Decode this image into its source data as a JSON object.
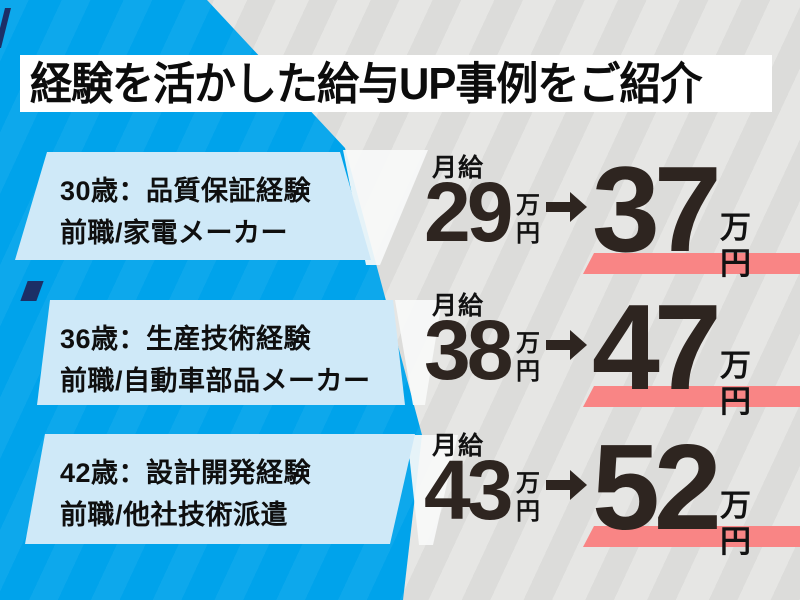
{
  "title": "経験を活かした給与UP事例をご紹介",
  "cases": [
    {
      "profile_line1": "30歳：品質保証経験",
      "profile_line2": "前職/家電メーカー",
      "salary_label": "月給",
      "salary_from": "29",
      "salary_to": "37",
      "unit_top": "万",
      "unit_bottom": "円"
    },
    {
      "profile_line1": "36歳：生産技術経験",
      "profile_line2": "前職/自動車部品メーカー",
      "salary_label": "月給",
      "salary_from": "38",
      "salary_to": "47",
      "unit_top": "万",
      "unit_bottom": "円"
    },
    {
      "profile_line1": "42歳：設計開発経験",
      "profile_line2": "前職/他社技術派遣",
      "salary_label": "月給",
      "salary_from": "43",
      "salary_to": "52",
      "unit_top": "万",
      "unit_bottom": "円"
    }
  ],
  "chart_data": {
    "type": "table",
    "title": "経験を活かした給与UP事例をご紹介",
    "categories": [
      "30歳：品質保証経験（前職/家電メーカー）",
      "36歳：生産技術経験（前職/自動車部品メーカー）",
      "42歳：設計開発経験（前職/他社技術派遣）"
    ],
    "series": [
      {
        "name": "月給（前・万円）",
        "values": [
          29,
          38,
          43
        ]
      },
      {
        "name": "月給（後・万円）",
        "values": [
          37,
          47,
          52
        ]
      }
    ]
  },
  "colors": {
    "accent_blue": "#00a3eb",
    "box_blue": "#cfe9f8",
    "highlight_pink": "#f98585",
    "number_ink": "#2e2520",
    "bg_gray": "#e6e6e4"
  }
}
